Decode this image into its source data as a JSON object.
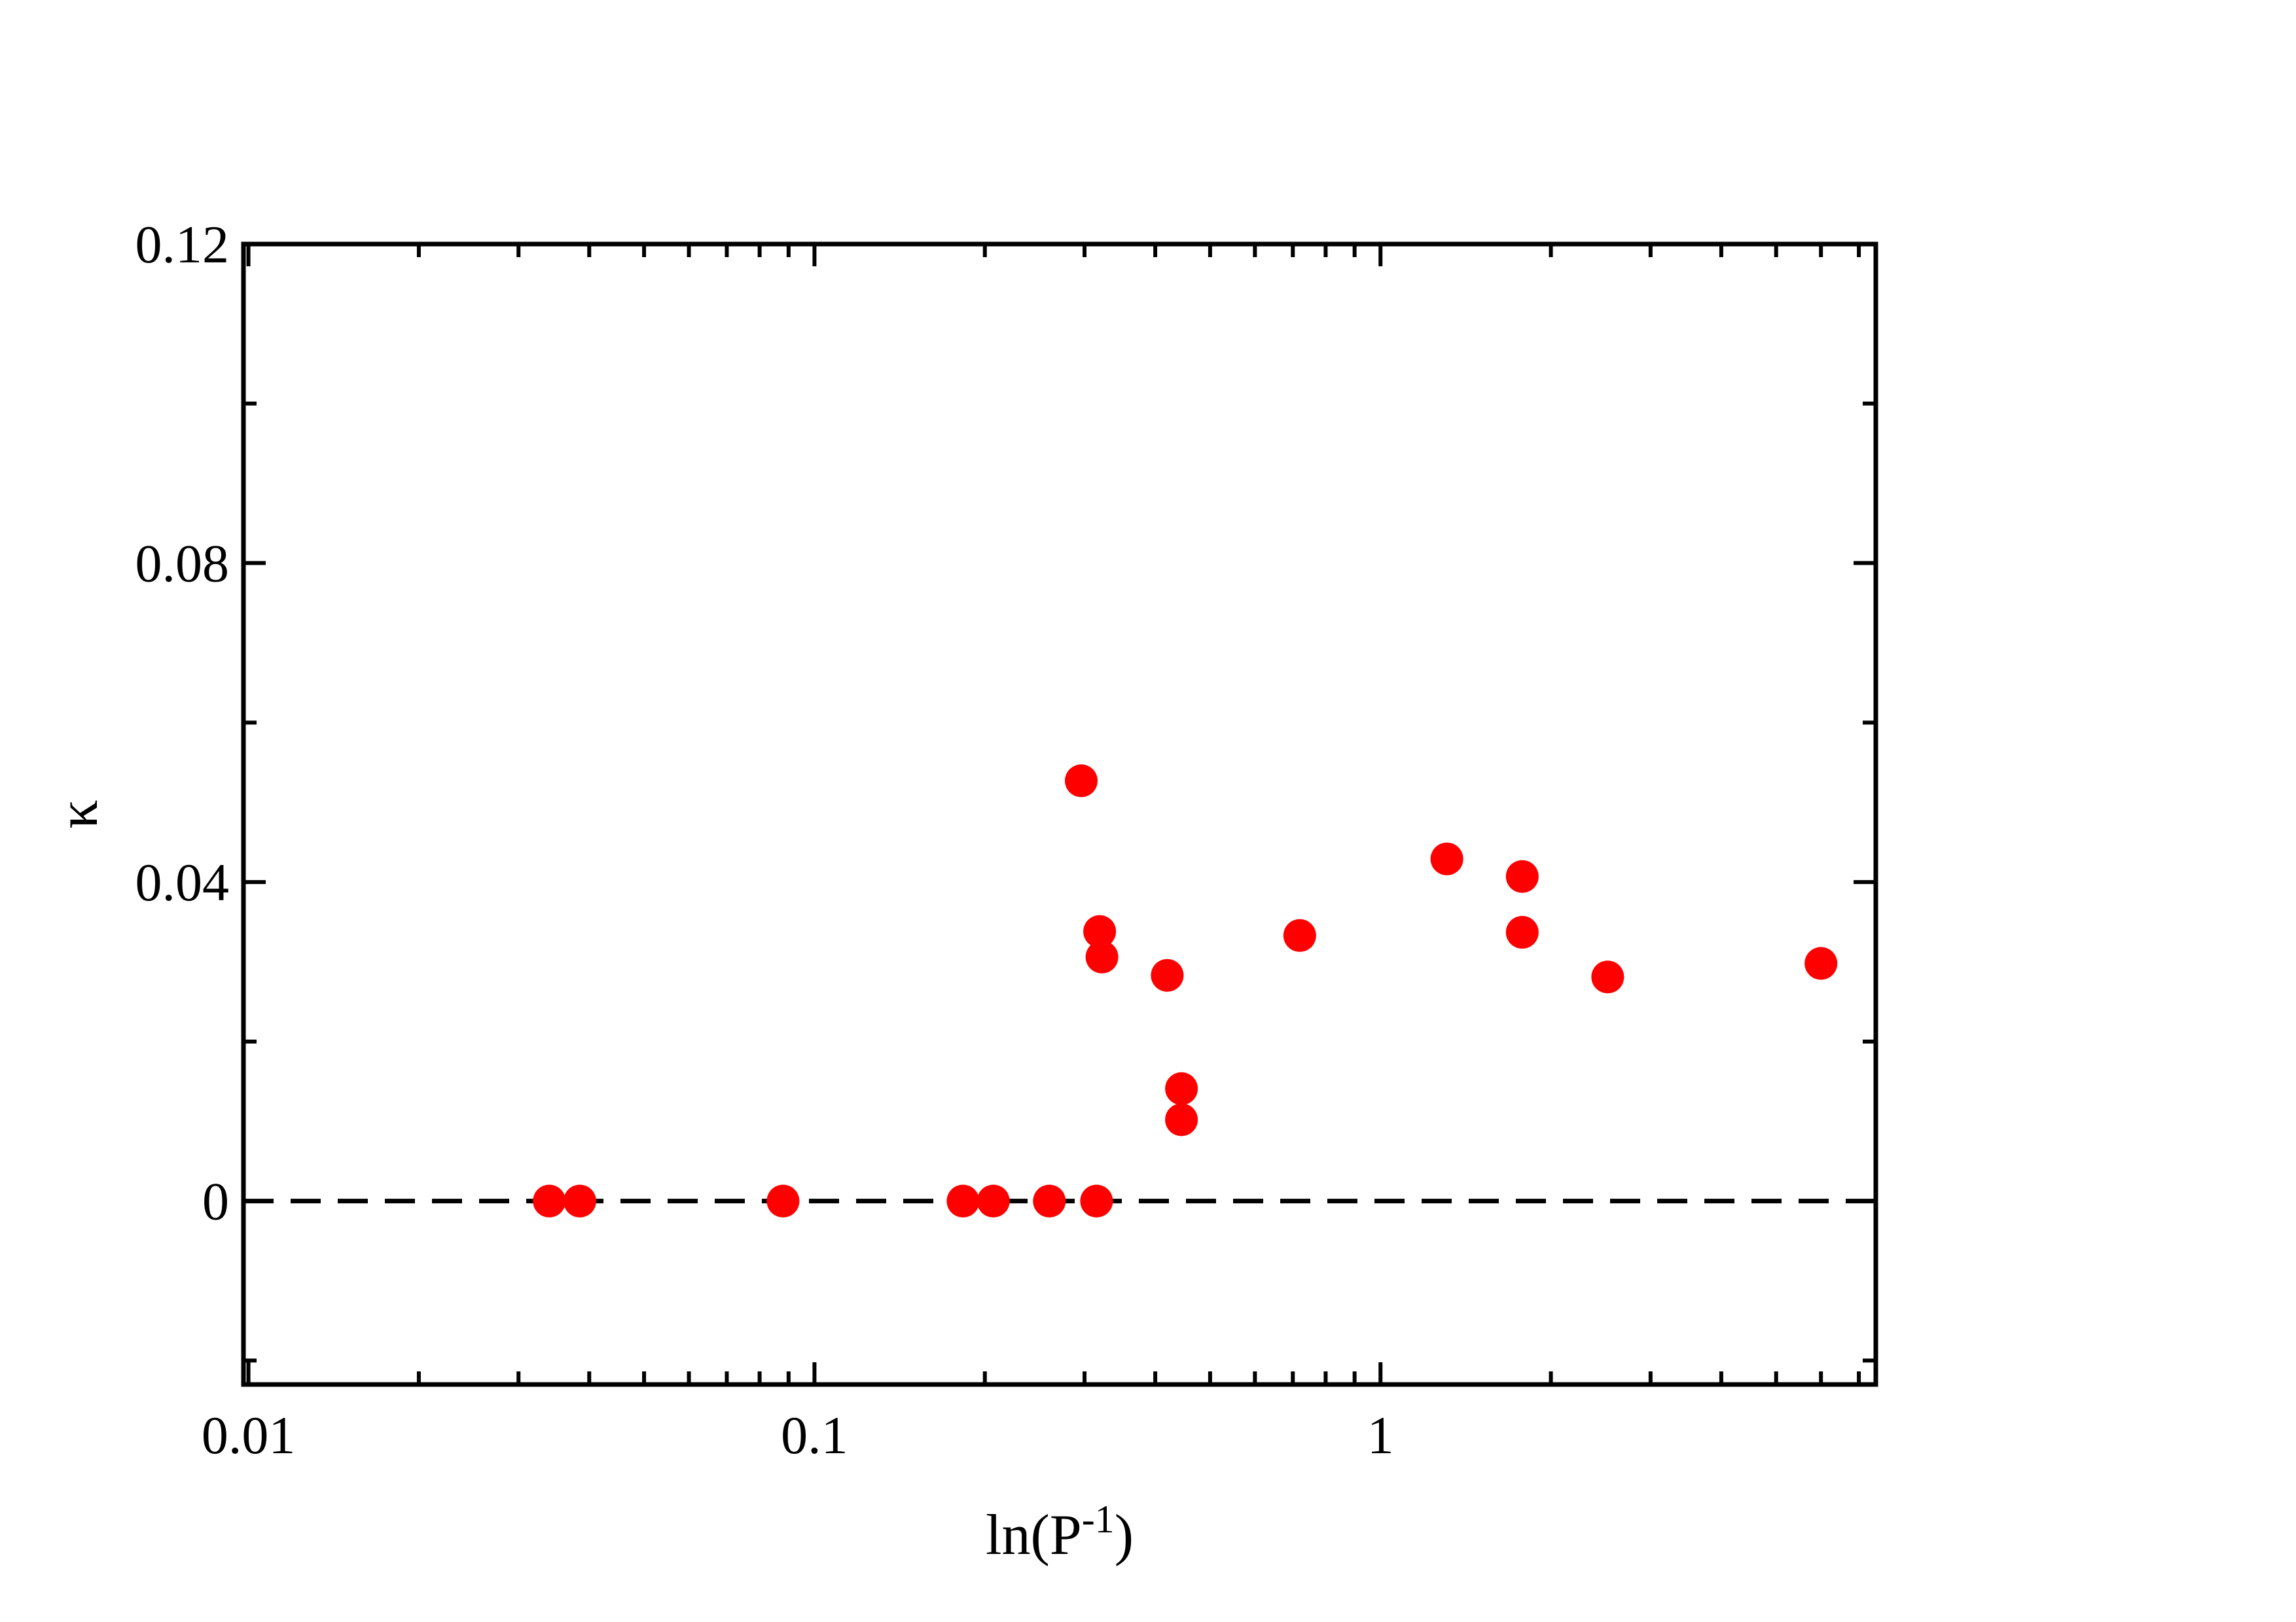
{
  "chart_data": {
    "type": "scatter",
    "xlabel": "ln(P",
    "xlabel_superscript": "-1",
    "xlabel_suffix": ")",
    "ylabel": "κ",
    "xscale": "log",
    "xlim": [
      0.0098,
      7.5
    ],
    "ylim": [
      -0.023,
      0.12
    ],
    "x_ticks": [
      {
        "value": 0.01,
        "label": "0.01"
      },
      {
        "value": 0.1,
        "label": "0.1"
      },
      {
        "value": 1,
        "label": "1"
      }
    ],
    "y_ticks": [
      {
        "value": 0,
        "label": "0"
      },
      {
        "value": 0.04,
        "label": "0.04"
      },
      {
        "value": 0.08,
        "label": "0.08"
      },
      {
        "value": 0.12,
        "label": "0.12"
      }
    ],
    "y_minor_ticks": [
      -0.02,
      0.02,
      0.06,
      0.1
    ],
    "reference_line": {
      "y": 0,
      "style": "dashed",
      "color": "#000000"
    },
    "marker_color": "#ff0000",
    "grid": false,
    "legend": "none",
    "points": [
      {
        "x": 0.034,
        "y": 0.0
      },
      {
        "x": 0.0385,
        "y": 0.0
      },
      {
        "x": 0.088,
        "y": 0.0
      },
      {
        "x": 0.183,
        "y": 0.0
      },
      {
        "x": 0.207,
        "y": 0.0
      },
      {
        "x": 0.26,
        "y": 0.0
      },
      {
        "x": 0.315,
        "y": 0.0
      },
      {
        "x": 0.296,
        "y": 0.0527
      },
      {
        "x": 0.319,
        "y": 0.0338
      },
      {
        "x": 0.322,
        "y": 0.0306
      },
      {
        "x": 0.42,
        "y": 0.0283
      },
      {
        "x": 0.445,
        "y": 0.0141
      },
      {
        "x": 0.445,
        "y": 0.0102
      },
      {
        "x": 0.72,
        "y": 0.0333
      },
      {
        "x": 1.31,
        "y": 0.0429
      },
      {
        "x": 1.78,
        "y": 0.0407
      },
      {
        "x": 1.78,
        "y": 0.0337
      },
      {
        "x": 2.52,
        "y": 0.0281
      },
      {
        "x": 6.0,
        "y": 0.0298
      }
    ]
  }
}
